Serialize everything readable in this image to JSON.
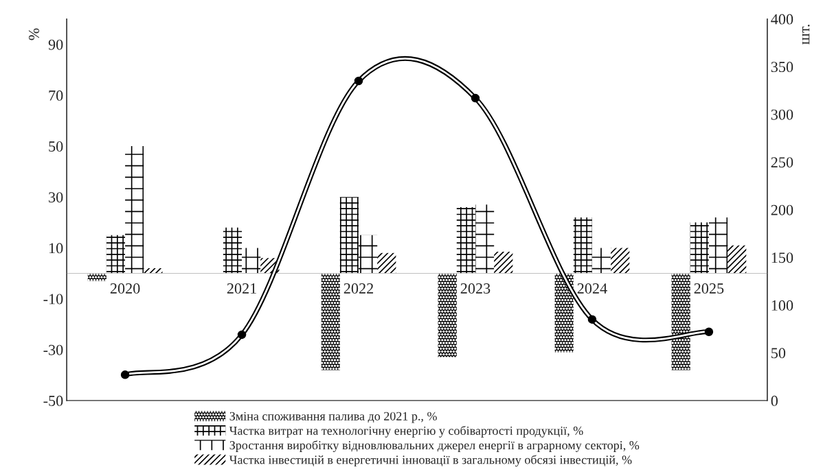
{
  "chart_data": {
    "type": "bar",
    "ylabel": "%",
    "y2label": "шт.",
    "categories": [
      "2020",
      "2021",
      "2022",
      "2023",
      "2024",
      "2025"
    ],
    "series": [
      {
        "name": "Зміна споживання палива до 2021 р., %",
        "color": "#000000",
        "values": [
          -3,
          0,
          -38,
          -33,
          -31,
          -38
        ]
      },
      {
        "name": "Частка витрат на технологічну енергію у собівартості продукції, %",
        "color": "#000000",
        "values": [
          15,
          18,
          30,
          26,
          22,
          20
        ]
      },
      {
        "name": "Зростання виробітку відновлювальних джерел енергії в аграрному секторі, %",
        "color": "#000000",
        "values": [
          50,
          10,
          15,
          27,
          10,
          22
        ]
      },
      {
        "name": "Частка інвестицій в енергетичні інновації в загальному обсязі інвестицій, %",
        "color": "#000000",
        "values": [
          2,
          6,
          8,
          8.5,
          10,
          11
        ]
      },
      {
        "type": "line",
        "axis": "y2",
        "color": "#000000",
        "marker": "circle",
        "values": [
          27,
          69,
          335,
          317,
          85,
          72
        ]
      }
    ],
    "ylim": [
      -50,
      100
    ],
    "yticks": [
      -50,
      -30,
      -10,
      10,
      30,
      50,
      70,
      90
    ],
    "y2lim": [
      0,
      400
    ],
    "y2ticks": [
      0,
      50,
      100,
      150,
      200,
      250,
      300,
      350,
      400
    ],
    "grid": false,
    "legend": "bottom"
  }
}
